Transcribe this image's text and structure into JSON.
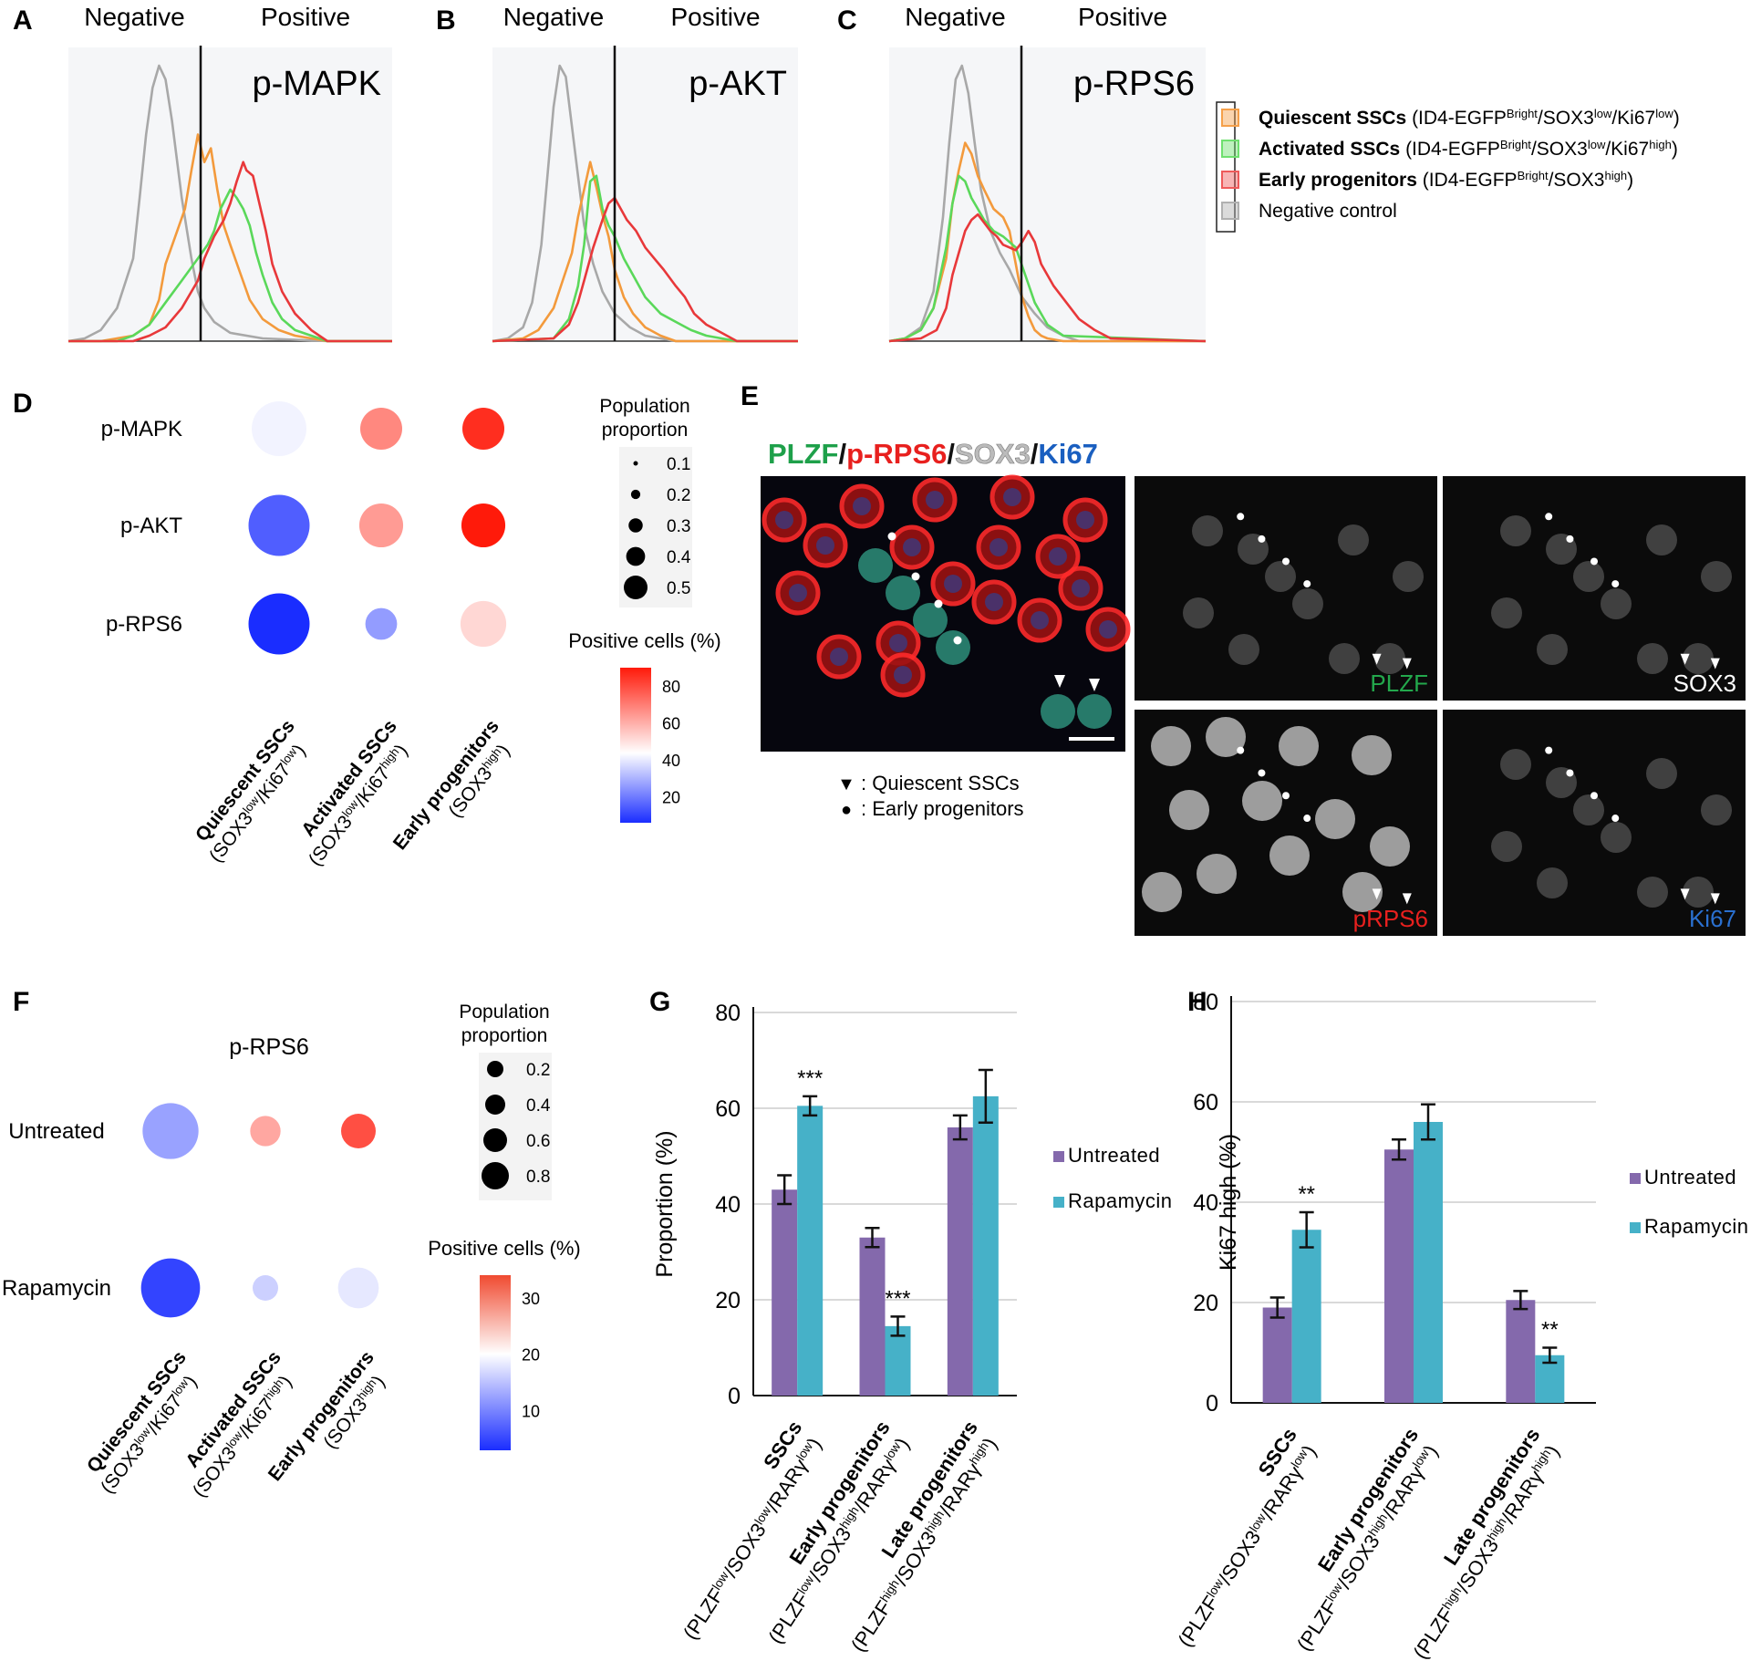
{
  "panels": {
    "A": "A",
    "B": "B",
    "C": "C",
    "D": "D",
    "E": "E",
    "F": "F",
    "G": "G",
    "H": "H"
  },
  "histograms": {
    "negative_label": "Negative",
    "positive_label": "Positive",
    "markers": [
      "p-MAPK",
      "p-AKT",
      "p-RPS6"
    ],
    "legend": [
      {
        "bold": "Quiescent SSCs",
        "rest": " (ID4-EGFP",
        "sup1": "Bright",
        "mid": "/SOX3",
        "sup2": "low",
        "mid2": "/Ki67",
        "sup3": "low",
        "end": ")",
        "color": "#f5a04a"
      },
      {
        "bold": "Activated SSCs",
        "rest": " (ID4-EGFP",
        "sup1": "Bright",
        "mid": "/SOX3",
        "sup2": "low",
        "mid2": "/Ki67",
        "sup3": "high",
        "end": ")",
        "color": "#6fe06f"
      },
      {
        "bold": "Early progenitors",
        "rest": " (ID4-EGFP",
        "sup1": "Bright",
        "mid": "/SOX3",
        "sup2": "high",
        "mid2": "",
        "sup3": "",
        "end": ")",
        "color": "#ee5a5a"
      },
      {
        "bold": "",
        "rest": "Negative control",
        "sup1": "",
        "mid": "",
        "sup2": "",
        "mid2": "",
        "sup3": "",
        "end": "",
        "color": "#b0b0b0"
      }
    ],
    "series_colors": {
      "negative": "#a8a8a8",
      "quiescent": "#f39a3c",
      "activated": "#5ad85a",
      "early": "#e8383a"
    }
  },
  "dotplot_D": {
    "rows": [
      "p-MAPK",
      "p-AKT",
      "p-RPS6"
    ],
    "cols": [
      {
        "main": "Quiescent SSCs",
        "sub": "(SOX3",
        "s1": "low",
        "m": "/Ki67",
        "s2": "low",
        "e": ")"
      },
      {
        "main": "Activated SSCs",
        "sub": "(SOX3",
        "s1": "low",
        "m": "/Ki67",
        "s2": "high",
        "e": ")"
      },
      {
        "main": "Early progenitors",
        "sub": "(SOX3",
        "s1": "high",
        "m": "",
        "s2": "",
        "e": ")"
      }
    ],
    "size_title": [
      "Population",
      "proportion"
    ],
    "size_legend": [
      "0.1",
      "0.2",
      "0.3",
      "0.4",
      "0.5"
    ],
    "color_title": "Positive cells (%)",
    "color_ticks": [
      "80",
      "60",
      "40",
      "20"
    ]
  },
  "microscopy_E": {
    "title_parts": [
      {
        "text": "PLZF",
        "color": "#1ea04a"
      },
      {
        "text": "/",
        "color": "#111111"
      },
      {
        "text": "p-RPS6",
        "color": "#e8201e"
      },
      {
        "text": "/",
        "color": "#111111"
      },
      {
        "text": "SOX3",
        "color": "#bbbbbb"
      },
      {
        "text": "/",
        "color": "#111111"
      },
      {
        "text": "Ki67",
        "color": "#1a5fc0"
      }
    ],
    "channels": [
      {
        "label": "PLZF",
        "color": "#23a84c"
      },
      {
        "label": "SOX3",
        "color": "#ffffff"
      },
      {
        "label": "pRPS6",
        "color": "#e8201e"
      },
      {
        "label": "Ki67",
        "color": "#2a70d0"
      }
    ],
    "legend": [
      {
        "symbol": "▼",
        "text": ": Quiescent SSCs"
      },
      {
        "symbol": "●",
        "text": ": Early progenitors"
      }
    ]
  },
  "dotplot_F": {
    "title": "p-RPS6",
    "rows": [
      "Untreated",
      "Rapamycin"
    ],
    "size_title": [
      "Population",
      "proportion"
    ],
    "size_legend": [
      "0.2",
      "0.4",
      "0.6",
      "0.8"
    ],
    "color_title": "Positive cells (%)",
    "color_ticks": [
      "30",
      "20",
      "10"
    ]
  },
  "chart_data": [
    {
      "type": "line",
      "panel": "A",
      "title": "p-MAPK",
      "series": [
        {
          "name": "Negative control",
          "x": [
            0,
            5,
            10,
            15,
            20,
            22,
            24,
            26,
            28,
            30,
            32,
            35,
            38,
            40,
            42,
            45,
            50,
            60,
            80,
            100
          ],
          "values": [
            0,
            1,
            4,
            12,
            30,
            52,
            75,
            92,
            100,
            95,
            80,
            52,
            30,
            18,
            12,
            7,
            3,
            1,
            0,
            0
          ]
        },
        {
          "name": "Quiescent SSCs",
          "x": [
            0,
            10,
            20,
            25,
            28,
            30,
            33,
            36,
            38,
            40,
            42,
            44,
            46,
            48,
            50,
            53,
            56,
            60,
            65,
            70,
            80,
            100
          ],
          "values": [
            0,
            0,
            2,
            6,
            15,
            28,
            38,
            48,
            62,
            75,
            65,
            70,
            55,
            42,
            35,
            25,
            15,
            8,
            4,
            2,
            0,
            0
          ]
        },
        {
          "name": "Activated SSCs",
          "x": [
            0,
            15,
            20,
            25,
            30,
            35,
            40,
            43,
            45,
            47,
            50,
            52,
            54,
            56,
            58,
            60,
            63,
            66,
            70,
            75,
            80,
            100
          ],
          "values": [
            0,
            0,
            2,
            6,
            14,
            22,
            30,
            35,
            40,
            48,
            55,
            52,
            48,
            42,
            32,
            24,
            14,
            8,
            4,
            2,
            0,
            0
          ]
        },
        {
          "name": "Early progenitors",
          "x": [
            0,
            20,
            25,
            30,
            35,
            40,
            42,
            45,
            48,
            50,
            52,
            54,
            55,
            57,
            59,
            61,
            63,
            66,
            70,
            75,
            80,
            100
          ],
          "values": [
            0,
            0,
            2,
            5,
            12,
            22,
            30,
            38,
            44,
            50,
            58,
            65,
            62,
            60,
            50,
            40,
            28,
            18,
            10,
            4,
            0,
            0
          ]
        }
      ]
    },
    {
      "type": "line",
      "panel": "B",
      "title": "p-AKT",
      "series": [
        {
          "name": "Negative control",
          "x": [
            0,
            5,
            10,
            13,
            16,
            18,
            20,
            22,
            24,
            26,
            28,
            30,
            33,
            36,
            40,
            45,
            50,
            60,
            100
          ],
          "values": [
            0,
            1,
            5,
            14,
            35,
            60,
            85,
            100,
            96,
            78,
            60,
            42,
            28,
            18,
            10,
            5,
            2,
            0,
            0
          ]
        },
        {
          "name": "Quiescent SSCs",
          "x": [
            0,
            10,
            15,
            20,
            23,
            26,
            28,
            30,
            32,
            34,
            36,
            38,
            40,
            43,
            46,
            50,
            55,
            60,
            100
          ],
          "values": [
            0,
            1,
            4,
            12,
            22,
            32,
            45,
            55,
            65,
            56,
            46,
            38,
            26,
            16,
            10,
            5,
            2,
            0,
            0
          ]
        },
        {
          "name": "Activated SSCs",
          "x": [
            0,
            20,
            25,
            28,
            30,
            32,
            34,
            36,
            38,
            40,
            43,
            46,
            50,
            55,
            60,
            65,
            70,
            80,
            100
          ],
          "values": [
            0,
            1,
            8,
            20,
            35,
            58,
            60,
            48,
            42,
            38,
            30,
            24,
            16,
            10,
            7,
            4,
            2,
            0,
            0
          ]
        },
        {
          "name": "Early progenitors",
          "x": [
            0,
            20,
            25,
            28,
            30,
            33,
            36,
            38,
            40,
            42,
            44,
            47,
            50,
            53,
            56,
            60,
            63,
            66,
            70,
            75,
            80,
            100
          ],
          "values": [
            0,
            1,
            6,
            14,
            22,
            34,
            44,
            50,
            52,
            48,
            44,
            40,
            34,
            30,
            26,
            20,
            16,
            10,
            6,
            3,
            0,
            0
          ]
        }
      ]
    },
    {
      "type": "line",
      "panel": "C",
      "title": "p-RPS6",
      "series": [
        {
          "name": "Negative control",
          "x": [
            0,
            5,
            10,
            14,
            17,
            19,
            21,
            23,
            25,
            27,
            29,
            32,
            35,
            38,
            42,
            46,
            50,
            55,
            60,
            100
          ],
          "values": [
            0,
            1,
            5,
            18,
            45,
            72,
            95,
            100,
            90,
            72,
            55,
            40,
            32,
            26,
            16,
            10,
            5,
            2,
            0,
            0
          ]
        },
        {
          "name": "Quiescent SSCs",
          "x": [
            0,
            5,
            10,
            14,
            18,
            20,
            22,
            24,
            26,
            28,
            30,
            33,
            36,
            38,
            40,
            42,
            44,
            46,
            48,
            50,
            55,
            100
          ],
          "values": [
            0,
            1,
            4,
            12,
            30,
            50,
            62,
            72,
            68,
            60,
            55,
            48,
            45,
            40,
            28,
            16,
            9,
            4,
            2,
            1,
            0,
            0
          ]
        },
        {
          "name": "Activated SSCs",
          "x": [
            0,
            5,
            10,
            14,
            18,
            20,
            22,
            24,
            26,
            28,
            30,
            33,
            36,
            40,
            43,
            46,
            50,
            55,
            100
          ],
          "values": [
            0,
            1,
            4,
            12,
            34,
            50,
            60,
            58,
            52,
            48,
            44,
            40,
            38,
            34,
            24,
            14,
            6,
            2,
            0
          ]
        },
        {
          "name": "Early progenitors",
          "x": [
            0,
            10,
            15,
            18,
            20,
            22,
            24,
            26,
            28,
            30,
            32,
            34,
            36,
            38,
            40,
            42,
            44,
            46,
            48,
            52,
            56,
            60,
            65,
            70,
            100
          ],
          "values": [
            0,
            1,
            4,
            12,
            24,
            32,
            40,
            44,
            46,
            43,
            40,
            38,
            35,
            34,
            33,
            36,
            40,
            36,
            28,
            20,
            14,
            8,
            4,
            1,
            0
          ]
        }
      ]
    },
    {
      "type": "scatter",
      "panel": "D",
      "rows": [
        "p-MAPK",
        "p-AKT",
        "p-RPS6"
      ],
      "columns": [
        "Quiescent SSCs",
        "Activated SSCs",
        "Early progenitors"
      ],
      "proportion": [
        [
          0.5,
          0.3,
          0.3
        ],
        [
          0.6,
          0.33,
          0.33
        ],
        [
          0.6,
          0.14,
          0.36
        ]
      ],
      "positive_pct": [
        [
          42,
          68,
          86
        ],
        [
          18,
          64,
          92
        ],
        [
          8,
          28,
          52
        ]
      ],
      "size_range": [
        0.1,
        0.5
      ],
      "color_range": [
        10,
        90
      ]
    },
    {
      "type": "scatter",
      "panel": "F",
      "rows": [
        "Untreated",
        "Rapamycin"
      ],
      "columns": [
        "Quiescent SSCs",
        "Activated SSCs",
        "Early progenitors"
      ],
      "proportion": [
        [
          0.7,
          0.28,
          0.35
        ],
        [
          0.75,
          0.2,
          0.45
        ]
      ],
      "positive_pct": [
        [
          12,
          25,
          30
        ],
        [
          4,
          16,
          18
        ]
      ],
      "size_range": [
        0.2,
        0.8
      ],
      "color_range": [
        5,
        33
      ]
    },
    {
      "type": "bar",
      "panel": "G",
      "ylabel": "Proportion (%)",
      "ylim": [
        0,
        80
      ],
      "yticks": [
        0,
        20,
        40,
        60,
        80
      ],
      "categories": [
        {
          "main": "SSCs",
          "sub": "(PLZF",
          "s1": "low",
          "m1": "/SOX3",
          "s2": "low",
          "m2": "/RARγ",
          "s3": "low",
          "e": ")"
        },
        {
          "main": "Early progenitors",
          "sub": "(PLZF",
          "s1": "low",
          "m1": "/SOX3",
          "s2": "high",
          "m2": "/RARγ",
          "s3": "low",
          "e": ")"
        },
        {
          "main": "Late progenitors",
          "sub": "(PLZF",
          "s1": "high",
          "m1": "/SOX3",
          "s2": "high",
          "m2": "/RARγ",
          "s3": "high",
          "e": ")"
        }
      ],
      "series": [
        {
          "name": "Untreated",
          "color": "#8469ac",
          "values": [
            43,
            33,
            56
          ],
          "errors": [
            3,
            2,
            2.5
          ]
        },
        {
          "name": "Rapamycin",
          "color": "#46b1c8",
          "values": [
            60.5,
            14.5,
            62.5
          ],
          "errors": [
            2,
            2,
            5.5
          ]
        }
      ],
      "annotations": [
        {
          "category": 0,
          "series": 1,
          "text": "***"
        },
        {
          "category": 1,
          "series": 1,
          "text": "***"
        }
      ]
    },
    {
      "type": "bar",
      "panel": "H",
      "ylabel": "Ki67 high  (%)",
      "ylim": [
        0,
        80
      ],
      "yticks": [
        0,
        20,
        40,
        60,
        80
      ],
      "categories": [
        {
          "main": "SSCs",
          "sub": "(PLZF",
          "s1": "low",
          "m1": "/SOX3",
          "s2": "low",
          "m2": "/RARγ",
          "s3": "low",
          "e": ")"
        },
        {
          "main": "Early progenitors",
          "sub": "(PLZF",
          "s1": "low",
          "m1": "/SOX3",
          "s2": "high",
          "m2": "/RARγ",
          "s3": "low",
          "e": ")"
        },
        {
          "main": "Late progenitors",
          "sub": "(PLZF",
          "s1": "high",
          "m1": "/SOX3",
          "s2": "high",
          "m2": "/RARγ",
          "s3": "high",
          "e": ")"
        }
      ],
      "series": [
        {
          "name": "Untreated",
          "color": "#8469ac",
          "values": [
            19,
            50.5,
            20.5
          ],
          "errors": [
            2,
            2,
            1.8
          ]
        },
        {
          "name": "Rapamycin",
          "color": "#46b1c8",
          "values": [
            34.5,
            56,
            9.5
          ],
          "errors": [
            3.5,
            3.5,
            1.5
          ]
        }
      ],
      "annotations": [
        {
          "category": 0,
          "series": 1,
          "text": "**"
        },
        {
          "category": 2,
          "series": 1,
          "text": "**"
        }
      ]
    }
  ]
}
